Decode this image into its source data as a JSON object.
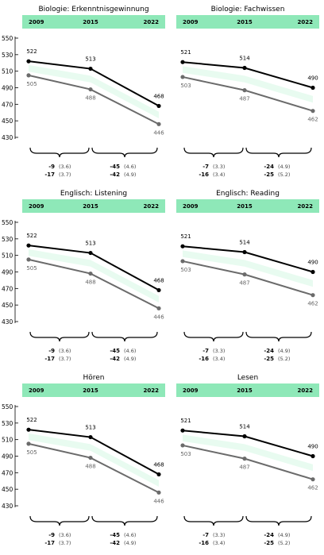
{
  "colors": {
    "band": "#8ee8b8",
    "ribbon": "#e8fbf0",
    "series_a": "#000000",
    "series_b": "#6b6b6b"
  },
  "chart_data": [
    {
      "type": "line",
      "title": "Biologie: Erkenntnisgewinnung",
      "x": [
        "2009",
        "2015",
        "2022"
      ],
      "yticks": [
        430,
        450,
        470,
        490,
        510,
        530,
        550
      ],
      "ylim": [
        420,
        552
      ],
      "series": [
        {
          "values": [
            522,
            513,
            468
          ]
        },
        {
          "values": [
            505,
            488,
            446
          ]
        }
      ],
      "differences": [
        {
          "a": "-9",
          "a_se": "(3.6)",
          "b": "-17",
          "b_se": "(3.7)"
        },
        {
          "a": "-45",
          "a_se": "(4.6)",
          "b": "-42",
          "b_se": "(4.9)"
        }
      ]
    },
    {
      "type": "line",
      "title": "Biologie: Fachwissen",
      "x": [
        "2009",
        "2015",
        "2022"
      ],
      "yticks": [],
      "ylim": [
        420,
        552
      ],
      "series": [
        {
          "values": [
            521,
            514,
            490
          ]
        },
        {
          "values": [
            503,
            487,
            462
          ]
        }
      ],
      "differences": [
        {
          "a": "-7",
          "a_se": "(3.3)",
          "b": "-16",
          "b_se": "(3.4)"
        },
        {
          "a": "-24",
          "a_se": "(4.9)",
          "b": "-25",
          "b_se": "(5.2)"
        }
      ]
    },
    {
      "type": "line",
      "title": "Englisch: Listening",
      "x": [
        "2009",
        "2015",
        "2022"
      ],
      "yticks": [
        430,
        450,
        470,
        490,
        510,
        530,
        550
      ],
      "ylim": [
        420,
        552
      ],
      "series": [
        {
          "values": [
            522,
            513,
            468
          ]
        },
        {
          "values": [
            505,
            488,
            446
          ]
        }
      ],
      "differences": [
        {
          "a": "-9",
          "a_se": "(3.6)",
          "b": "-17",
          "b_se": "(3.7)"
        },
        {
          "a": "-45",
          "a_se": "(4.6)",
          "b": "-42",
          "b_se": "(4.9)"
        }
      ]
    },
    {
      "type": "line",
      "title": "Englisch: Reading",
      "x": [
        "2009",
        "2015",
        "2022"
      ],
      "yticks": [],
      "ylim": [
        420,
        552
      ],
      "series": [
        {
          "values": [
            521,
            514,
            490
          ]
        },
        {
          "values": [
            503,
            487,
            462
          ]
        }
      ],
      "differences": [
        {
          "a": "-7",
          "a_se": "(3.3)",
          "b": "-16",
          "b_se": "(3.4)"
        },
        {
          "a": "-24",
          "a_se": "(4.9)",
          "b": "-25",
          "b_se": "(5.2)"
        }
      ]
    },
    {
      "type": "line",
      "title": "Hören",
      "x": [
        "2009",
        "2015",
        "2022"
      ],
      "yticks": [
        430,
        450,
        470,
        490,
        510,
        530,
        550
      ],
      "ylim": [
        420,
        552
      ],
      "series": [
        {
          "values": [
            522,
            513,
            468
          ]
        },
        {
          "values": [
            505,
            488,
            446
          ]
        }
      ],
      "differences": [
        {
          "a": "-9",
          "a_se": "(3.6)",
          "b": "-17",
          "b_se": "(3.7)"
        },
        {
          "a": "-45",
          "a_se": "(4.6)",
          "b": "-42",
          "b_se": "(4.9)"
        }
      ]
    },
    {
      "type": "line",
      "title": "Lesen",
      "x": [
        "2009",
        "2015",
        "2022"
      ],
      "yticks": [],
      "ylim": [
        420,
        552
      ],
      "series": [
        {
          "values": [
            521,
            514,
            490
          ]
        },
        {
          "values": [
            503,
            487,
            462
          ]
        }
      ],
      "differences": [
        {
          "a": "-7",
          "a_se": "(3.3)",
          "b": "-16",
          "b_se": "(3.4)"
        },
        {
          "a": "-24",
          "a_se": "(4.9)",
          "b": "-25",
          "b_se": "(5.2)"
        }
      ]
    }
  ]
}
